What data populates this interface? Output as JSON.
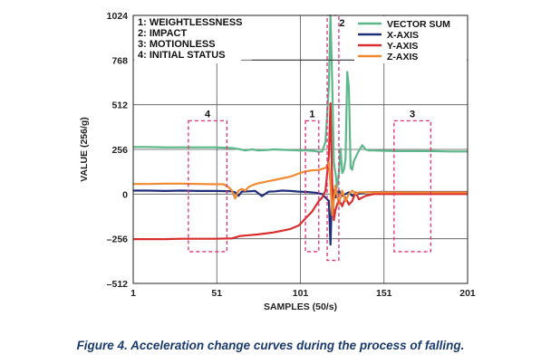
{
  "chart_data": {
    "type": "line",
    "title": "",
    "xlabel": "SAMPLES (50/s)",
    "ylabel": "VALUE (256/g)",
    "xlim": [
      1,
      201
    ],
    "ylim": [
      -512,
      1024
    ],
    "x_ticks": [
      "1",
      "51",
      "101",
      "151",
      "201"
    ],
    "y_ticks": [
      "1024",
      "768",
      "512",
      "256",
      "0",
      "–256",
      "–512"
    ],
    "grid": true,
    "annotations": [
      "1: WEIGHTLESSNESS",
      "2: IMPACT",
      "3: MOTIONLESS",
      "4: INITIAL STATUS"
    ],
    "regions": [
      {
        "label": "1",
        "x": [
          104,
          112
        ],
        "y": [
          -330,
          420
        ]
      },
      {
        "label": "2",
        "x": [
          117,
          124
        ],
        "y": [
          -380,
          1024
        ]
      },
      {
        "label": "3",
        "x": [
          157,
          179
        ],
        "y": [
          -330,
          420
        ]
      },
      {
        "label": "4",
        "x": [
          34,
          57
        ],
        "y": [
          -330,
          420
        ]
      }
    ],
    "legend_position": "top-right",
    "series": [
      {
        "name": "VECTOR SUM",
        "color": "#5cb88a",
        "x": [
          1,
          10,
          20,
          30,
          40,
          50,
          60,
          64,
          68,
          72,
          76,
          80,
          85,
          90,
          95,
          100,
          105,
          110,
          112,
          114,
          116,
          118,
          119,
          120,
          121,
          122,
          123,
          124,
          125,
          126,
          127,
          128,
          129,
          130,
          131,
          132,
          133,
          134,
          136,
          138,
          140,
          142,
          145,
          150,
          160,
          170,
          180,
          190,
          201
        ],
        "y": [
          270,
          270,
          268,
          268,
          268,
          268,
          264,
          258,
          250,
          256,
          250,
          252,
          256,
          254,
          252,
          250,
          250,
          246,
          242,
          244,
          300,
          620,
          1024,
          640,
          180,
          120,
          40,
          120,
          260,
          120,
          140,
          200,
          700,
          610,
          150,
          140,
          190,
          210,
          250,
          280,
          255,
          250,
          250,
          248,
          246,
          246,
          246,
          244,
          244
        ]
      },
      {
        "name": "X-AXIS",
        "color": "#1f2f7a",
        "x": [
          1,
          10,
          20,
          30,
          40,
          50,
          60,
          62,
          64,
          66,
          70,
          74,
          78,
          82,
          86,
          90,
          95,
          100,
          105,
          110,
          114,
          116,
          118,
          119,
          120,
          121,
          122,
          124,
          126,
          128,
          130,
          132,
          135,
          140,
          150,
          160,
          170,
          180,
          190,
          201
        ],
        "y": [
          20,
          20,
          18,
          20,
          18,
          18,
          16,
          10,
          -10,
          14,
          16,
          18,
          -12,
          14,
          16,
          20,
          18,
          14,
          12,
          8,
          0,
          -20,
          -40,
          -290,
          40,
          0,
          -20,
          20,
          -10,
          0,
          10,
          -10,
          0,
          10,
          12,
          12,
          12,
          12,
          12,
          12
        ]
      },
      {
        "name": "Y-AXIS",
        "color": "#d92e2e",
        "x": [
          1,
          10,
          20,
          30,
          40,
          50,
          60,
          65,
          70,
          75,
          80,
          85,
          90,
          95,
          100,
          103,
          106,
          108,
          110,
          112,
          114,
          116,
          118,
          119,
          120,
          121,
          122,
          124,
          126,
          128,
          130,
          132,
          134,
          136,
          138,
          140,
          145,
          150,
          160,
          170,
          180,
          190,
          201
        ],
        "y": [
          -258,
          -258,
          -258,
          -256,
          -256,
          -256,
          -254,
          -240,
          -236,
          -232,
          -226,
          -220,
          -210,
          -200,
          -180,
          -150,
          -120,
          -100,
          -70,
          -40,
          -20,
          20,
          220,
          520,
          60,
          -150,
          -90,
          -30,
          -70,
          -20,
          -60,
          -40,
          10,
          -30,
          -20,
          -10,
          0,
          0,
          0,
          0,
          0,
          0,
          0
        ]
      },
      {
        "name": "Z-AXIS",
        "color": "#f08a32",
        "x": [
          1,
          10,
          20,
          30,
          40,
          50,
          55,
          58,
          60,
          62,
          64,
          66,
          68,
          70,
          72,
          75,
          80,
          85,
          90,
          95,
          100,
          104,
          108,
          112,
          116,
          118,
          119,
          120,
          122,
          124,
          126,
          128,
          130,
          132,
          134,
          136,
          138,
          140,
          145,
          150,
          160,
          170,
          180,
          190,
          201
        ],
        "y": [
          58,
          58,
          60,
          60,
          58,
          56,
          56,
          40,
          20,
          -25,
          20,
          30,
          20,
          40,
          50,
          60,
          70,
          80,
          90,
          100,
          118,
          130,
          136,
          138,
          150,
          180,
          60,
          -120,
          50,
          -60,
          20,
          -40,
          0,
          20,
          0,
          10,
          10,
          10,
          10,
          10,
          10,
          10,
          10,
          10,
          10
        ]
      }
    ]
  },
  "caption": "Figure 4. Acceleration change curves during the process of falling."
}
